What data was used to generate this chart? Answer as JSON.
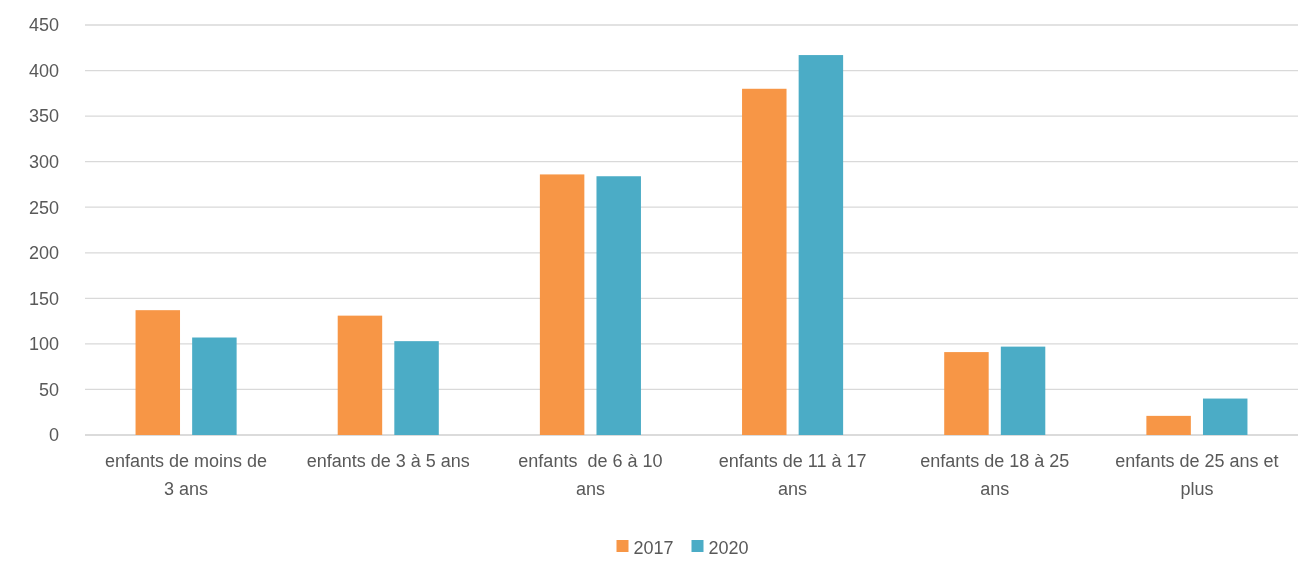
{
  "chart_data": {
    "type": "bar",
    "categories": [
      "enfants de moins de 3 ans",
      "enfants de 3 à 5 ans",
      "enfants  de 6 à 10 ans",
      "enfants de 11 à 17 ans",
      "enfants de 18 à 25 ans",
      "enfants de 25 ans et plus"
    ],
    "series": [
      {
        "name": "2017",
        "color": "#f79646",
        "values": [
          137,
          131,
          286,
          380,
          91,
          21
        ]
      },
      {
        "name": "2020",
        "color": "#4bacc6",
        "values": [
          107,
          103,
          284,
          417,
          97,
          40
        ]
      }
    ],
    "ylim": [
      0,
      450
    ],
    "yticks": [
      0,
      50,
      100,
      150,
      200,
      250,
      300,
      350,
      400,
      450
    ],
    "grid": "y",
    "legend": "bottom"
  }
}
